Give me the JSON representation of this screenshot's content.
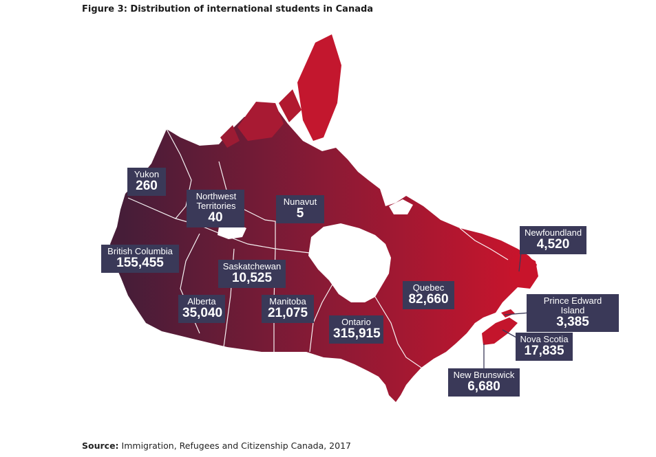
{
  "title": "Figure 3: Distribution of international students in Canada",
  "source": {
    "label": "Source:",
    "text": "Immigration, Refugees and Citizenship Canada, 2017"
  },
  "colors": {
    "west": "#4a1f3a",
    "east": "#d2142a",
    "label_bg": "#3a3958"
  },
  "provinces": [
    {
      "key": "yukon",
      "name": "Yukon",
      "value": "260"
    },
    {
      "key": "nwt",
      "name": "Northwest Territories",
      "value": "40"
    },
    {
      "key": "nunavut",
      "name": "Nunavut",
      "value": "5"
    },
    {
      "key": "bc",
      "name": "British Columbia",
      "value": "155,455"
    },
    {
      "key": "saskatchewan",
      "name": "Saskatchewan",
      "value": "10,525"
    },
    {
      "key": "alberta",
      "name": "Alberta",
      "value": "35,040"
    },
    {
      "key": "manitoba",
      "name": "Manitoba",
      "value": "21,075"
    },
    {
      "key": "ontario",
      "name": "Ontario",
      "value": "315,915"
    },
    {
      "key": "quebec",
      "name": "Quebec",
      "value": "82,660"
    },
    {
      "key": "newfoundland",
      "name": "Newfoundland",
      "value": "4,520"
    },
    {
      "key": "pei",
      "name": "Prince Edward Island",
      "value": "3,385"
    },
    {
      "key": "nova_scotia",
      "name": "Nova Scotia",
      "value": "17,835"
    },
    {
      "key": "new_brunswick",
      "name": "New Brunswick",
      "value": "6,680"
    }
  ]
}
